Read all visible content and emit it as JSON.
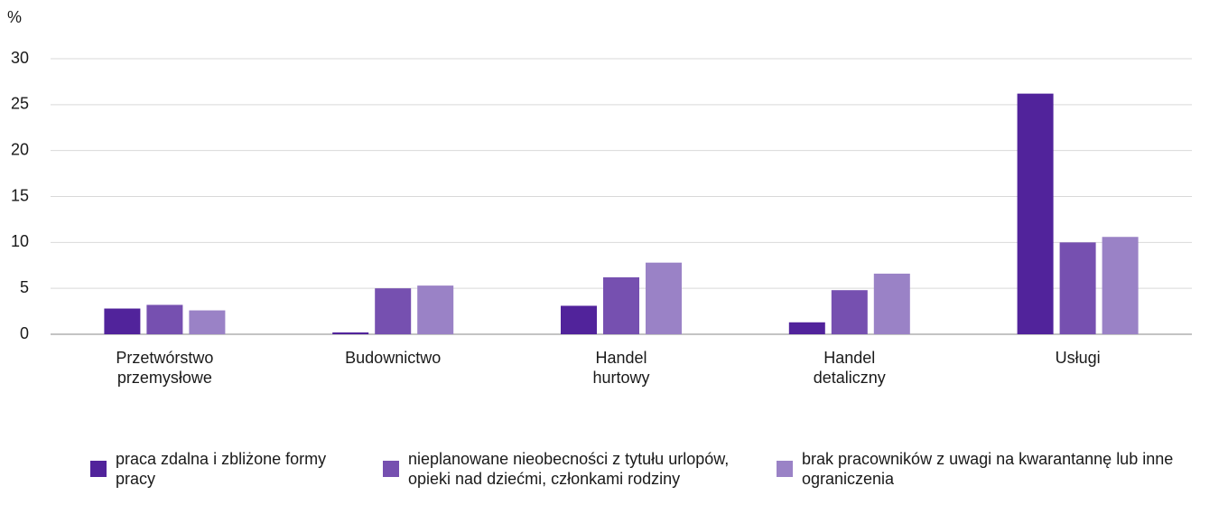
{
  "chart_data": {
    "type": "bar",
    "y_label": "%",
    "categories": [
      "Przetwórstwo przemysłowe",
      "Budownictwo",
      "Handel hurtowy",
      "Handel detaliczny",
      "Usługi"
    ],
    "series": [
      {
        "name": "praca zdalna i zbliżone formy pracy",
        "color": "#51239b",
        "values": [
          2.8,
          0.2,
          3.1,
          1.3,
          26.2
        ]
      },
      {
        "name": "nieplanowane nieobecności z tytułu urlopów, opieki nad dziećmi, członkami rodziny",
        "color": "#7650b0",
        "values": [
          3.2,
          5.0,
          6.2,
          4.8,
          10.0
        ]
      },
      {
        "name": "brak pracowników z uwagi na kwarantannę lub inne ograniczenia",
        "color": "#9a82c6",
        "values": [
          2.6,
          5.3,
          7.8,
          6.6,
          10.6
        ]
      }
    ],
    "ylim": [
      0,
      30
    ],
    "yticks": [
      0,
      5,
      10,
      15,
      20,
      25,
      30
    ],
    "grid": true
  }
}
